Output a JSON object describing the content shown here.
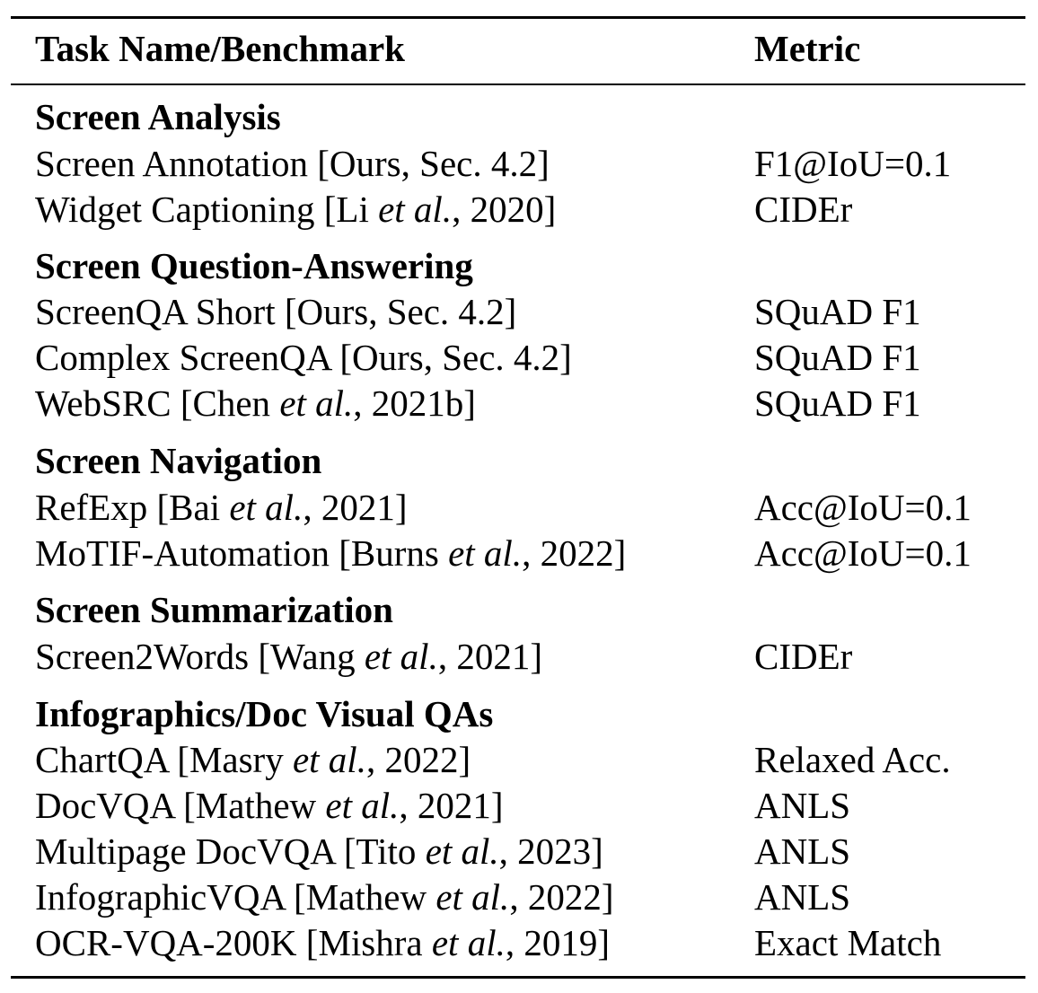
{
  "header": {
    "task": "Task Name/Benchmark",
    "metric": "Metric"
  },
  "sections": [
    {
      "title": "Screen Analysis",
      "rows": [
        {
          "task": {
            "before": "Screen Annotation [Ours, Sec. 4.2]",
            "italic": "",
            "after": ""
          },
          "metric": "F1@IoU=0.1"
        },
        {
          "task": {
            "before": "Widget Captioning [Li ",
            "italic": "et al.",
            "after": ", 2020]"
          },
          "metric": "CIDEr"
        }
      ]
    },
    {
      "title": "Screen Question-Answering",
      "rows": [
        {
          "task": {
            "before": "ScreenQA Short [Ours, Sec. 4.2]",
            "italic": "",
            "after": ""
          },
          "metric": "SQuAD F1"
        },
        {
          "task": {
            "before": "Complex ScreenQA [Ours, Sec. 4.2]",
            "italic": "",
            "after": ""
          },
          "metric": "SQuAD F1"
        },
        {
          "task": {
            "before": "WebSRC [Chen ",
            "italic": "et al.",
            "after": ", 2021b]"
          },
          "metric": "SQuAD F1"
        }
      ]
    },
    {
      "title": "Screen Navigation",
      "rows": [
        {
          "task": {
            "before": "RefExp [Bai ",
            "italic": "et al.",
            "after": ", 2021]"
          },
          "metric": "Acc@IoU=0.1"
        },
        {
          "task": {
            "before": "MoTIF-Automation [Burns ",
            "italic": "et al.",
            "after": ", 2022]"
          },
          "metric": "Acc@IoU=0.1"
        }
      ]
    },
    {
      "title": "Screen Summarization",
      "rows": [
        {
          "task": {
            "before": "Screen2Words [Wang ",
            "italic": "et al.",
            "after": ", 2021]"
          },
          "metric": "CIDEr"
        }
      ]
    },
    {
      "title": "Infographics/Doc Visual QAs",
      "rows": [
        {
          "task": {
            "before": "ChartQA [Masry ",
            "italic": "et al.",
            "after": ", 2022]"
          },
          "metric": "Relaxed Acc."
        },
        {
          "task": {
            "before": "DocVQA [Mathew ",
            "italic": "et al.",
            "after": ", 2021]"
          },
          "metric": "ANLS"
        },
        {
          "task": {
            "before": "Multipage DocVQA [Tito ",
            "italic": "et al.",
            "after": ", 2023]"
          },
          "metric": "ANLS"
        },
        {
          "task": {
            "before": "InfographicVQA [Mathew ",
            "italic": "et al.",
            "after": ", 2022]"
          },
          "metric": "ANLS"
        },
        {
          "task": {
            "before": "OCR-VQA-200K [Mishra ",
            "italic": "et al.",
            "after": ", 2019]"
          },
          "metric": "Exact Match"
        }
      ]
    }
  ]
}
